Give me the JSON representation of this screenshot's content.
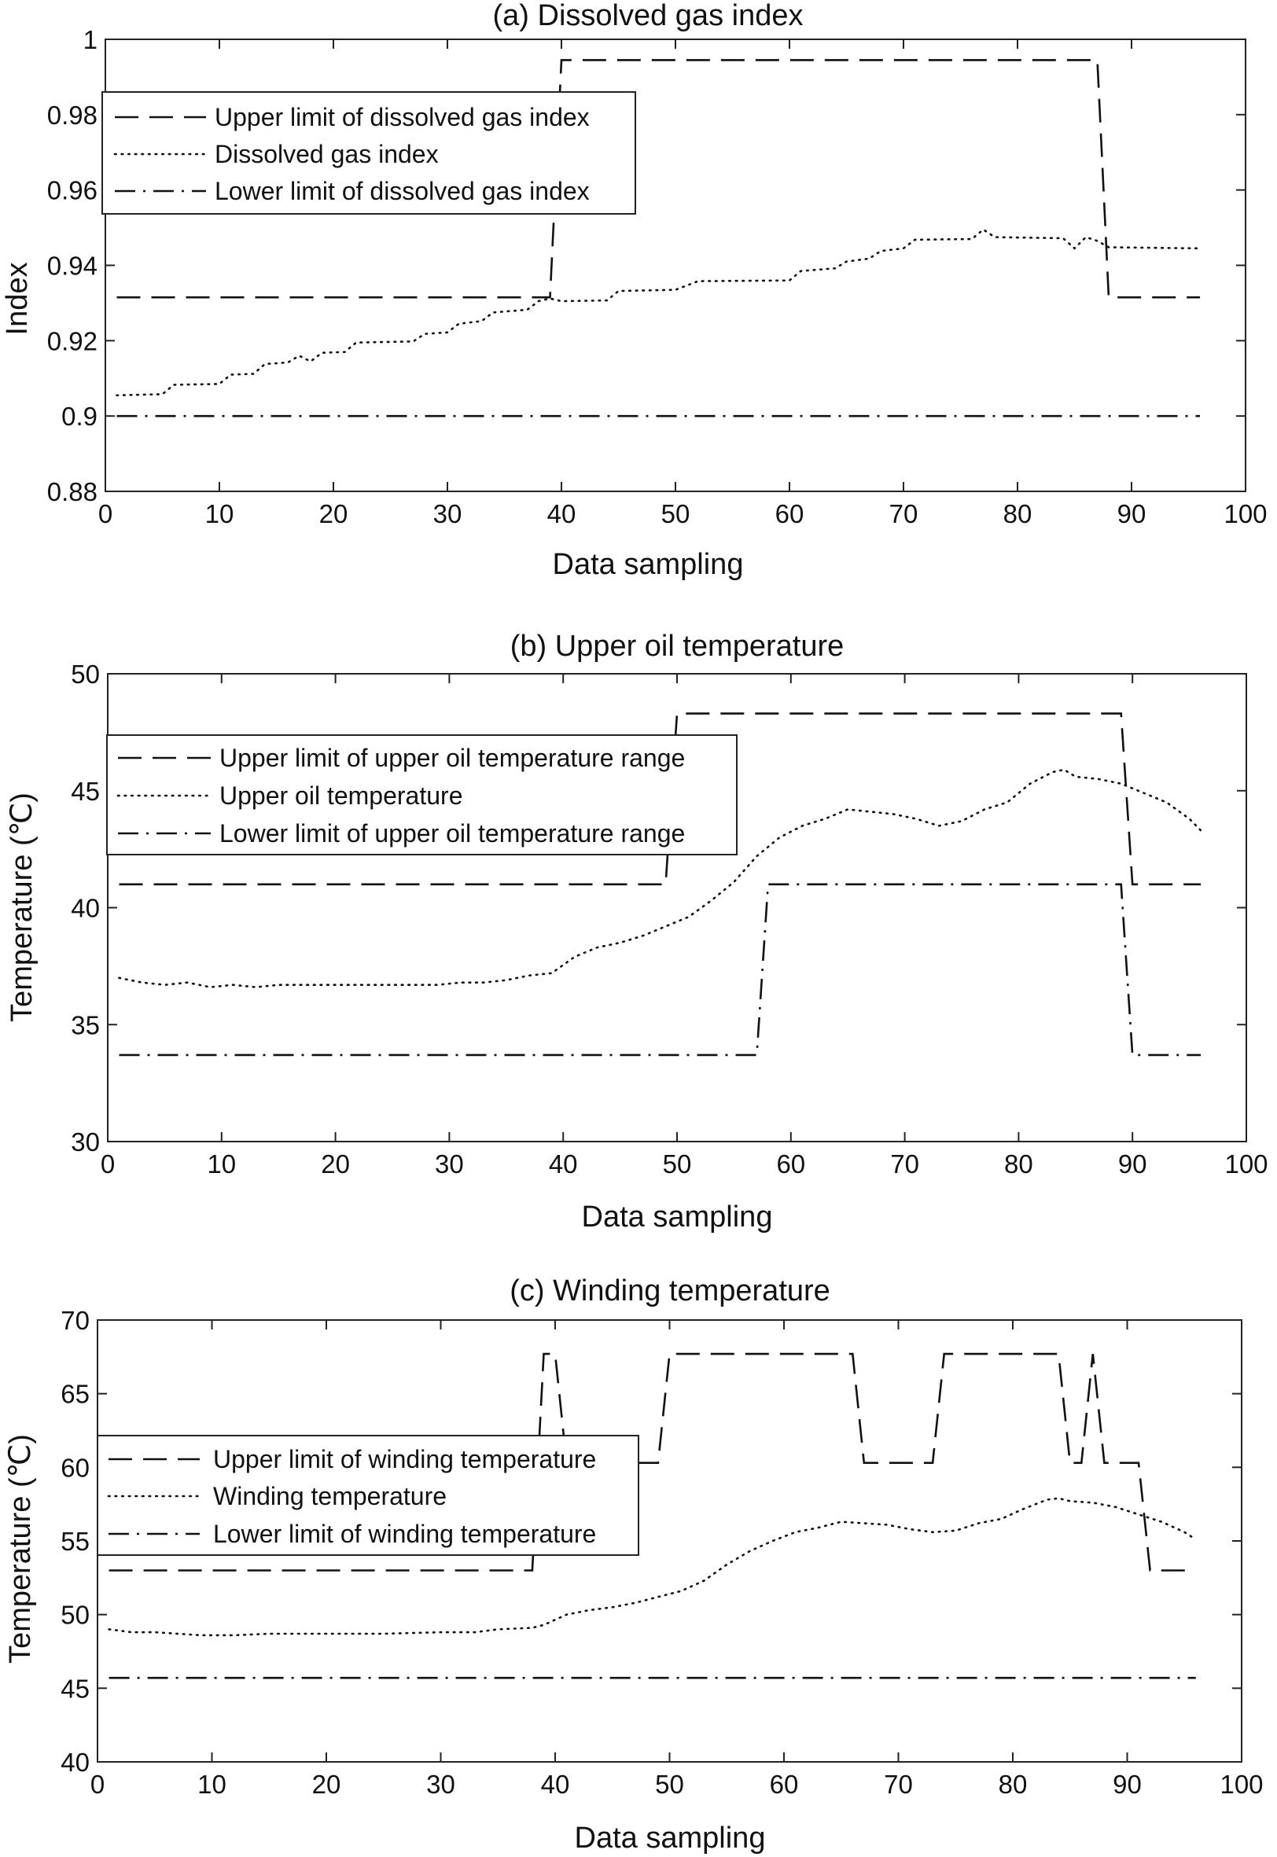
{
  "chart_data": [
    {
      "type": "line",
      "title": "(a) Dissolved gas index",
      "xlabel": "Data sampling",
      "ylabel": "Index",
      "xlim": [
        0,
        100
      ],
      "ylim": [
        0.88,
        1.0
      ],
      "xticks": [
        0,
        10,
        20,
        30,
        40,
        50,
        60,
        70,
        80,
        90,
        100
      ],
      "xtick_labels": [
        "0",
        "10",
        "20",
        "30",
        "40",
        "50",
        "60",
        "70",
        "80",
        "90",
        "100"
      ],
      "yticks": [
        0.88,
        0.9,
        0.92,
        0.94,
        0.96,
        0.98,
        1.0
      ],
      "ytick_labels": [
        "0.88",
        "0.9",
        "0.92",
        "0.94",
        "0.96",
        "0.98",
        "1"
      ],
      "legend_position": "top-left",
      "series": [
        {
          "name": "Upper limit of dissolved gas index",
          "style": "dashed",
          "points": [
            [
              1,
              0.9315
            ],
            [
              39,
              0.9315
            ],
            [
              40,
              0.9945
            ],
            [
              87,
              0.9945
            ],
            [
              88,
              0.9315
            ],
            [
              96,
              0.9315
            ]
          ]
        },
        {
          "name": "Dissolved gas index",
          "style": "dotted",
          "points": [
            [
              1,
              0.9055
            ],
            [
              5,
              0.9058
            ],
            [
              6,
              0.9083
            ],
            [
              10,
              0.9085
            ],
            [
              11,
              0.911
            ],
            [
              13,
              0.9112
            ],
            [
              14,
              0.9138
            ],
            [
              16,
              0.9142
            ],
            [
              17,
              0.916
            ],
            [
              18,
              0.9145
            ],
            [
              19,
              0.9168
            ],
            [
              21,
              0.917
            ],
            [
              22,
              0.9195
            ],
            [
              27,
              0.9198
            ],
            [
              28,
              0.9218
            ],
            [
              30,
              0.9222
            ],
            [
              31,
              0.9245
            ],
            [
              33,
              0.9252
            ],
            [
              34,
              0.9275
            ],
            [
              37,
              0.9282
            ],
            [
              38,
              0.9305
            ],
            [
              39,
              0.9312
            ],
            [
              40,
              0.9305
            ],
            [
              44,
              0.9307
            ],
            [
              45,
              0.9332
            ],
            [
              50,
              0.9335
            ],
            [
              52,
              0.9358
            ],
            [
              60,
              0.936
            ],
            [
              61,
              0.9385
            ],
            [
              64,
              0.9392
            ],
            [
              65,
              0.941
            ],
            [
              67,
              0.9418
            ],
            [
              68,
              0.9438
            ],
            [
              70,
              0.9445
            ],
            [
              71,
              0.9468
            ],
            [
              76,
              0.947
            ],
            [
              77,
              0.9495
            ],
            [
              78,
              0.9475
            ],
            [
              84,
              0.9472
            ],
            [
              85,
              0.9445
            ],
            [
              86,
              0.9475
            ],
            [
              87,
              0.9465
            ],
            [
              88,
              0.9448
            ],
            [
              96,
              0.9445
            ]
          ]
        },
        {
          "name": "Lower limit of dissolved gas index",
          "style": "dashdot",
          "points": [
            [
              1,
              0.9
            ],
            [
              96,
              0.9
            ]
          ]
        }
      ]
    },
    {
      "type": "line",
      "title": "(b) Upper oil temperature",
      "xlabel": "Data sampling",
      "ylabel": "Temperature (℃)",
      "xlim": [
        0,
        100
      ],
      "ylim": [
        30,
        50
      ],
      "xticks": [
        0,
        10,
        20,
        30,
        40,
        50,
        60,
        70,
        80,
        90,
        100
      ],
      "xtick_labels": [
        "0",
        "10",
        "20",
        "30",
        "40",
        "50",
        "60",
        "70",
        "80",
        "90",
        "100"
      ],
      "yticks": [
        30,
        35,
        40,
        45,
        50
      ],
      "ytick_labels": [
        "30",
        "35",
        "40",
        "45",
        "50"
      ],
      "legend_position": "upper-left",
      "series": [
        {
          "name": "Upper limit of upper oil temperature range",
          "style": "dashed",
          "points": [
            [
              1,
              41.0
            ],
            [
              49,
              41.0
            ],
            [
              50,
              48.3
            ],
            [
              89,
              48.3
            ],
            [
              90,
              41.0
            ],
            [
              96,
              41.0
            ]
          ]
        },
        {
          "name": "Upper oil temperature",
          "style": "dotted",
          "points": [
            [
              1,
              37.0
            ],
            [
              3,
              36.8
            ],
            [
              5,
              36.7
            ],
            [
              7,
              36.8
            ],
            [
              9,
              36.6
            ],
            [
              11,
              36.7
            ],
            [
              13,
              36.6
            ],
            [
              15,
              36.7
            ],
            [
              20,
              36.7
            ],
            [
              25,
              36.7
            ],
            [
              29,
              36.7
            ],
            [
              31,
              36.8
            ],
            [
              33,
              36.8
            ],
            [
              35,
              36.9
            ],
            [
              37,
              37.1
            ],
            [
              39,
              37.2
            ],
            [
              41,
              37.9
            ],
            [
              43,
              38.3
            ],
            [
              45,
              38.5
            ],
            [
              47,
              38.8
            ],
            [
              49,
              39.2
            ],
            [
              51,
              39.6
            ],
            [
              53,
              40.3
            ],
            [
              55,
              41.1
            ],
            [
              57,
              42.2
            ],
            [
              59,
              43.0
            ],
            [
              61,
              43.5
            ],
            [
              63,
              43.8
            ],
            [
              65,
              44.2
            ],
            [
              67,
              44.1
            ],
            [
              69,
              44.0
            ],
            [
              71,
              43.8
            ],
            [
              73,
              43.5
            ],
            [
              75,
              43.7
            ],
            [
              77,
              44.2
            ],
            [
              79,
              44.5
            ],
            [
              81,
              45.3
            ],
            [
              83,
              45.8
            ],
            [
              84,
              45.9
            ],
            [
              85,
              45.6
            ],
            [
              87,
              45.5
            ],
            [
              89,
              45.3
            ],
            [
              91,
              44.9
            ],
            [
              93,
              44.5
            ],
            [
              95,
              43.8
            ],
            [
              96,
              43.3
            ]
          ]
        },
        {
          "name": "Lower limit of upper oil temperature range",
          "style": "dashdot",
          "points": [
            [
              1,
              33.7
            ],
            [
              57,
              33.7
            ],
            [
              58,
              41.0
            ],
            [
              89,
              41.0
            ],
            [
              90,
              33.7
            ],
            [
              96,
              33.7
            ]
          ]
        }
      ]
    },
    {
      "type": "line",
      "title": "(c) Winding temperature",
      "xlabel": "Data sampling",
      "ylabel": "Temperature (℃)",
      "xlim": [
        0,
        100
      ],
      "ylim": [
        40,
        70
      ],
      "xticks": [
        0,
        10,
        20,
        30,
        40,
        50,
        60,
        70,
        80,
        90,
        100
      ],
      "xtick_labels": [
        "0",
        "10",
        "20",
        "30",
        "40",
        "50",
        "60",
        "70",
        "80",
        "90",
        "100"
      ],
      "yticks": [
        40,
        45,
        50,
        55,
        60,
        65,
        70
      ],
      "ytick_labels": [
        "40",
        "45",
        "50",
        "55",
        "60",
        "65",
        "70"
      ],
      "legend_position": "middle-left",
      "series": [
        {
          "name": "Upper limit of winding temperature",
          "style": "dashed",
          "points": [
            [
              1,
              53.0
            ],
            [
              38,
              53.0
            ],
            [
              39,
              67.7
            ],
            [
              40,
              67.7
            ],
            [
              41,
              60.3
            ],
            [
              49,
              60.3
            ],
            [
              50,
              67.7
            ],
            [
              66,
              67.7
            ],
            [
              67,
              60.3
            ],
            [
              73,
              60.3
            ],
            [
              74,
              67.7
            ],
            [
              84,
              67.7
            ],
            [
              85,
              60.3
            ],
            [
              86,
              60.3
            ],
            [
              87,
              67.7
            ],
            [
              88,
              60.3
            ],
            [
              91,
              60.3
            ],
            [
              92,
              53.0
            ],
            [
              96,
              53.0
            ]
          ]
        },
        {
          "name": "Winding temperature",
          "style": "dotted",
          "points": [
            [
              1,
              49.0
            ],
            [
              3,
              48.8
            ],
            [
              5,
              48.8
            ],
            [
              7,
              48.7
            ],
            [
              9,
              48.6
            ],
            [
              12,
              48.6
            ],
            [
              15,
              48.7
            ],
            [
              20,
              48.7
            ],
            [
              25,
              48.7
            ],
            [
              30,
              48.8
            ],
            [
              33,
              48.8
            ],
            [
              35,
              49.0
            ],
            [
              38,
              49.1
            ],
            [
              39,
              49.3
            ],
            [
              41,
              50.0
            ],
            [
              43,
              50.3
            ],
            [
              45,
              50.5
            ],
            [
              47,
              50.8
            ],
            [
              49,
              51.2
            ],
            [
              51,
              51.6
            ],
            [
              53,
              52.3
            ],
            [
              55,
              53.4
            ],
            [
              57,
              54.3
            ],
            [
              59,
              55.0
            ],
            [
              61,
              55.6
            ],
            [
              63,
              55.9
            ],
            [
              65,
              56.3
            ],
            [
              67,
              56.2
            ],
            [
              69,
              56.1
            ],
            [
              71,
              55.8
            ],
            [
              73,
              55.6
            ],
            [
              75,
              55.7
            ],
            [
              77,
              56.2
            ],
            [
              79,
              56.5
            ],
            [
              81,
              57.2
            ],
            [
              83,
              57.8
            ],
            [
              84,
              57.9
            ],
            [
              85,
              57.7
            ],
            [
              87,
              57.6
            ],
            [
              89,
              57.3
            ],
            [
              91,
              56.8
            ],
            [
              93,
              56.3
            ],
            [
              95,
              55.6
            ],
            [
              96,
              55.1
            ]
          ]
        },
        {
          "name": "Lower limit of winding temperature",
          "style": "dashdot",
          "points": [
            [
              1,
              45.7
            ],
            [
              96,
              45.7
            ]
          ]
        }
      ]
    }
  ]
}
